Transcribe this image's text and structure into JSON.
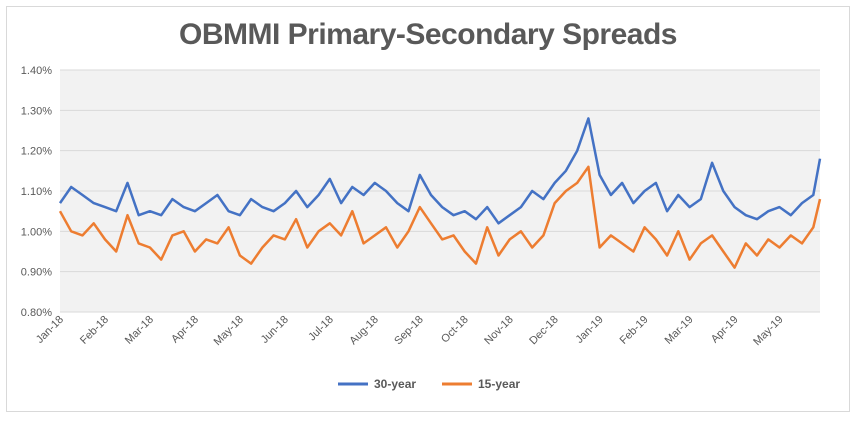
{
  "chart_data": {
    "type": "line",
    "title": "OBMMI Primary-Secondary Spreads",
    "xlabel": "",
    "ylabel": "",
    "ylim": [
      0.8,
      1.4
    ],
    "yticks": [
      "0.80%",
      "0.90%",
      "1.00%",
      "1.10%",
      "1.20%",
      "1.30%",
      "1.40%"
    ],
    "xticks": [
      "Jan-18",
      "Feb-18",
      "Mar-18",
      "Apr-18",
      "May-18",
      "Jun-18",
      "Jul-18",
      "Aug-18",
      "Sep-18",
      "Oct-18",
      "Nov-18",
      "Dec-18",
      "Jan-19",
      "Feb-19",
      "Mar-19",
      "Apr-19",
      "May-19"
    ],
    "grid": true,
    "legend_position": "bottom",
    "series": [
      {
        "name": "30-year",
        "color": "#4472c4",
        "x_months": [
          0,
          0.25,
          0.5,
          0.75,
          1,
          1.25,
          1.5,
          1.75,
          2,
          2.25,
          2.5,
          2.75,
          3,
          3.25,
          3.5,
          3.75,
          4,
          4.25,
          4.5,
          4.75,
          5,
          5.25,
          5.5,
          5.75,
          6,
          6.25,
          6.5,
          6.75,
          7,
          7.25,
          7.5,
          7.75,
          8,
          8.25,
          8.5,
          8.75,
          9,
          9.25,
          9.5,
          9.75,
          10,
          10.25,
          10.5,
          10.75,
          11,
          11.25,
          11.5,
          11.75,
          12,
          12.25,
          12.5,
          12.75,
          13,
          13.25,
          13.5,
          13.75,
          14,
          14.25,
          14.5,
          14.75,
          15,
          15.25,
          15.5,
          15.75,
          16,
          16.25,
          16.5,
          16.75,
          16.9
        ],
        "values": [
          1.07,
          1.11,
          1.09,
          1.07,
          1.06,
          1.05,
          1.12,
          1.04,
          1.05,
          1.04,
          1.08,
          1.06,
          1.05,
          1.07,
          1.09,
          1.05,
          1.04,
          1.08,
          1.06,
          1.05,
          1.07,
          1.1,
          1.06,
          1.09,
          1.13,
          1.07,
          1.11,
          1.09,
          1.12,
          1.1,
          1.07,
          1.05,
          1.14,
          1.09,
          1.06,
          1.04,
          1.05,
          1.03,
          1.06,
          1.02,
          1.04,
          1.06,
          1.1,
          1.08,
          1.12,
          1.15,
          1.2,
          1.28,
          1.14,
          1.09,
          1.12,
          1.07,
          1.1,
          1.12,
          1.05,
          1.09,
          1.06,
          1.08,
          1.17,
          1.1,
          1.06,
          1.04,
          1.03,
          1.05,
          1.06,
          1.04,
          1.07,
          1.09,
          1.18
        ]
      },
      {
        "name": "15-year",
        "color": "#ed7d31",
        "x_months": [
          0,
          0.25,
          0.5,
          0.75,
          1,
          1.25,
          1.5,
          1.75,
          2,
          2.25,
          2.5,
          2.75,
          3,
          3.25,
          3.5,
          3.75,
          4,
          4.25,
          4.5,
          4.75,
          5,
          5.25,
          5.5,
          5.75,
          6,
          6.25,
          6.5,
          6.75,
          7,
          7.25,
          7.5,
          7.75,
          8,
          8.25,
          8.5,
          8.75,
          9,
          9.25,
          9.5,
          9.75,
          10,
          10.25,
          10.5,
          10.75,
          11,
          11.25,
          11.5,
          11.75,
          12,
          12.25,
          12.5,
          12.75,
          13,
          13.25,
          13.5,
          13.75,
          14,
          14.25,
          14.5,
          14.75,
          15,
          15.25,
          15.5,
          15.75,
          16,
          16.25,
          16.5,
          16.75,
          16.9
        ],
        "values": [
          1.05,
          1.0,
          0.99,
          1.02,
          0.98,
          0.95,
          1.04,
          0.97,
          0.96,
          0.93,
          0.99,
          1.0,
          0.95,
          0.98,
          0.97,
          1.01,
          0.94,
          0.92,
          0.96,
          0.99,
          0.98,
          1.03,
          0.96,
          1.0,
          1.02,
          0.99,
          1.05,
          0.97,
          0.99,
          1.01,
          0.96,
          1.0,
          1.06,
          1.02,
          0.98,
          0.99,
          0.95,
          0.92,
          1.01,
          0.94,
          0.98,
          1.0,
          0.96,
          0.99,
          1.07,
          1.1,
          1.12,
          1.16,
          0.96,
          0.99,
          0.97,
          0.95,
          1.01,
          0.98,
          0.94,
          1.0,
          0.93,
          0.97,
          0.99,
          0.95,
          0.91,
          0.97,
          0.94,
          0.98,
          0.96,
          0.99,
          0.97,
          1.01,
          1.08
        ]
      }
    ]
  }
}
